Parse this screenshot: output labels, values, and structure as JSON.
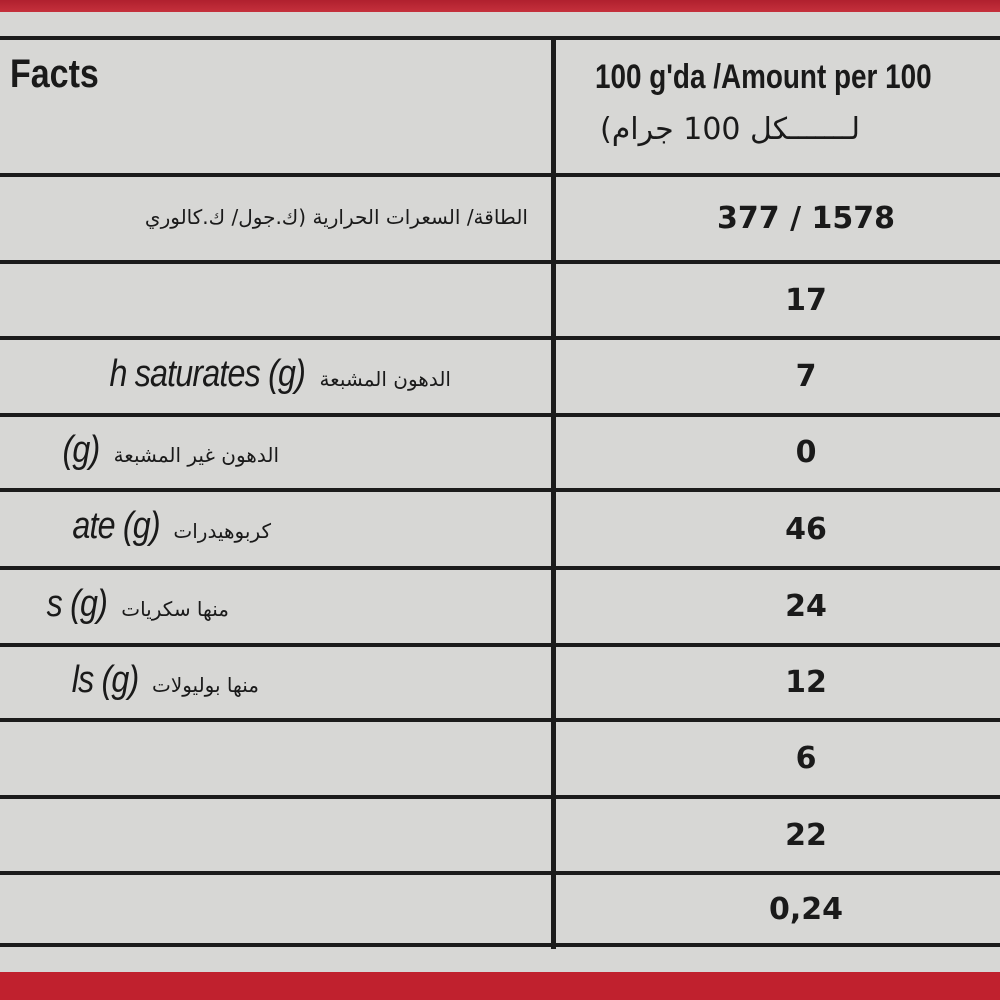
{
  "header": {
    "title": "Facts",
    "amount_line": "100 g'da /Amount per 100",
    "amount_line_ar": "لـــــــكل 100 جرام)"
  },
  "energy": {
    "label_ar": "الطاقة/ السعرات الحرارية (ك.جول/ ك.كالوري",
    "value": "377 / 1578"
  },
  "rows": [
    {
      "label_en": "",
      "label_ar": "",
      "value": "17"
    },
    {
      "label_en": "h saturates (g)",
      "label_ar": "الدهون المشبعة",
      "value": "7"
    },
    {
      "label_en": "(g)",
      "label_ar": "الدهون غير المشبعة",
      "value": "0"
    },
    {
      "label_en": "ate (g)",
      "label_ar": "كربوهيدرات",
      "value": "46"
    },
    {
      "label_en": "s (g)",
      "label_ar": "منها سكريات",
      "value": "24"
    },
    {
      "label_en": "ls (g)",
      "label_ar": "منها بوليولات",
      "value": "12"
    },
    {
      "label_en": "",
      "label_ar": "",
      "value": "6"
    },
    {
      "label_en": "",
      "label_ar": "",
      "value": "22"
    },
    {
      "label_en": "",
      "label_ar": "",
      "value": "0,24"
    }
  ],
  "colors": {
    "package_red": "#c0212e",
    "label_bg": "#d7d7d5",
    "rule": "#1b1b1b"
  }
}
